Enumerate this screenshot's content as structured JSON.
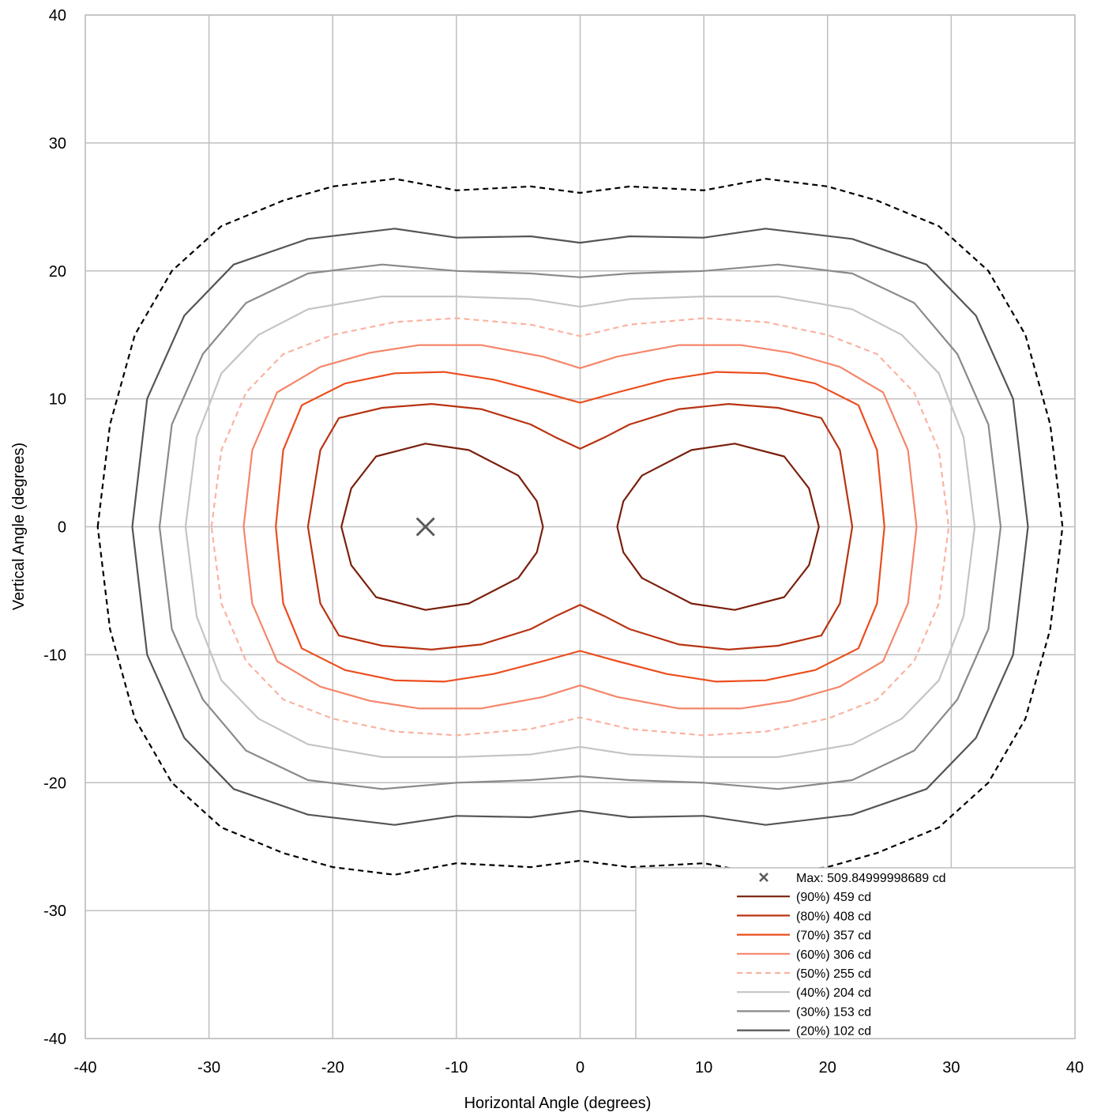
{
  "chart_data": {
    "type": "contour",
    "xlabel": "Horizontal Angle (degrees)",
    "ylabel": "Vertical Angle (degrees)",
    "xlim": [
      -40,
      40
    ],
    "ylim": [
      -40,
      40
    ],
    "x_ticks": [
      "-40",
      "-30",
      "-20",
      "-10",
      "0",
      "10",
      "20",
      "30",
      "40"
    ],
    "y_ticks": [
      "40",
      "30",
      "20",
      "10",
      "0",
      "-10",
      "-20",
      "-30",
      "-40"
    ],
    "grid": true,
    "legend_position": "bottom-right",
    "max_point": {
      "label": "Max: 509.84999998689 cd",
      "x": -12.5,
      "y": 0
    },
    "contours": [
      {
        "label": "(90%) 459 cd",
        "color": "#7a1f0c",
        "dashed": false,
        "shape": "split",
        "half_left": [
          [
            -19.3,
            0
          ],
          [
            -18.5,
            3.0
          ],
          [
            -16.5,
            5.5
          ],
          [
            -12.5,
            6.5
          ],
          [
            -9,
            6.0
          ],
          [
            -5,
            4.0
          ],
          [
            -3.5,
            2.0
          ],
          [
            -3.0,
            0
          ]
        ]
      },
      {
        "label": "(80%) 408 cd",
        "color": "#b83312",
        "dashed": false,
        "shape": "joined",
        "half_left": [
          [
            -22,
            0
          ],
          [
            -21,
            6
          ],
          [
            -19.5,
            8.5
          ],
          [
            -16,
            9.3
          ],
          [
            -12,
            9.6
          ],
          [
            -8,
            9.2
          ],
          [
            -4,
            8.0
          ],
          [
            -2,
            7.0
          ],
          [
            0,
            6.1
          ]
        ]
      },
      {
        "label": "(70%) 357 cd",
        "color": "#ec4d1e",
        "dashed": false,
        "shape": "joined",
        "half_left": [
          [
            -24.6,
            0
          ],
          [
            -24,
            6
          ],
          [
            -22.5,
            9.5
          ],
          [
            -19,
            11.2
          ],
          [
            -15,
            12.0
          ],
          [
            -11,
            12.1
          ],
          [
            -7,
            11.5
          ],
          [
            -3,
            10.5
          ],
          [
            0,
            9.7
          ]
        ]
      },
      {
        "label": "(60%) 306 cd",
        "color": "#f5866a",
        "dashed": false,
        "shape": "joined",
        "half_left": [
          [
            -27.2,
            0
          ],
          [
            -26.5,
            6
          ],
          [
            -24.5,
            10.5
          ],
          [
            -21,
            12.5
          ],
          [
            -17,
            13.6
          ],
          [
            -13,
            14.2
          ],
          [
            -8,
            14.2
          ],
          [
            -3,
            13.3
          ],
          [
            0,
            12.4
          ]
        ]
      },
      {
        "label": "(50%) 255 cd",
        "color": "#fab3a2",
        "dashed": true,
        "shape": "joined",
        "half_left": [
          [
            -29.8,
            0
          ],
          [
            -29,
            6
          ],
          [
            -27,
            10.5
          ],
          [
            -24,
            13.5
          ],
          [
            -20,
            15.0
          ],
          [
            -15,
            16.0
          ],
          [
            -10,
            16.3
          ],
          [
            -4,
            15.8
          ],
          [
            0,
            14.9
          ]
        ]
      },
      {
        "label": "(40%) 204 cd",
        "color": "#c4c4c4",
        "dashed": false,
        "shape": "joined",
        "half_left": [
          [
            -31.9,
            0
          ],
          [
            -31,
            7
          ],
          [
            -29,
            12
          ],
          [
            -26,
            15
          ],
          [
            -22,
            17
          ],
          [
            -16,
            18.0
          ],
          [
            -10,
            18.0
          ],
          [
            -4,
            17.8
          ],
          [
            0,
            17.2
          ]
        ]
      },
      {
        "label": "(30%) 153 cd",
        "color": "#8a8a8a",
        "dashed": false,
        "shape": "joined",
        "half_left": [
          [
            -34,
            0
          ],
          [
            -33,
            8
          ],
          [
            -30.5,
            13.5
          ],
          [
            -27,
            17.5
          ],
          [
            -22,
            19.8
          ],
          [
            -16,
            20.5
          ],
          [
            -10,
            20.0
          ],
          [
            -4,
            19.8
          ],
          [
            0,
            19.5
          ]
        ]
      },
      {
        "label": "(20%) 102 cd",
        "color": "#555555",
        "dashed": false,
        "shape": "joined",
        "half_left": [
          [
            -36.2,
            0
          ],
          [
            -35,
            10
          ],
          [
            -32,
            16.5
          ],
          [
            -28,
            20.5
          ],
          [
            -22,
            22.5
          ],
          [
            -15,
            23.3
          ],
          [
            -10,
            22.6
          ],
          [
            -4,
            22.7
          ],
          [
            0,
            22.2
          ]
        ]
      },
      {
        "label": "",
        "color": "#000000",
        "dashed": true,
        "shape": "joined",
        "half_left": [
          [
            -39,
            0
          ],
          [
            -38,
            8
          ],
          [
            -36,
            15
          ],
          [
            -33,
            20
          ],
          [
            -29,
            23.5
          ],
          [
            -24,
            25.5
          ],
          [
            -20,
            26.6
          ],
          [
            -15,
            27.2
          ],
          [
            -10,
            26.3
          ],
          [
            -4,
            26.6
          ],
          [
            0,
            26.1
          ]
        ]
      }
    ]
  }
}
